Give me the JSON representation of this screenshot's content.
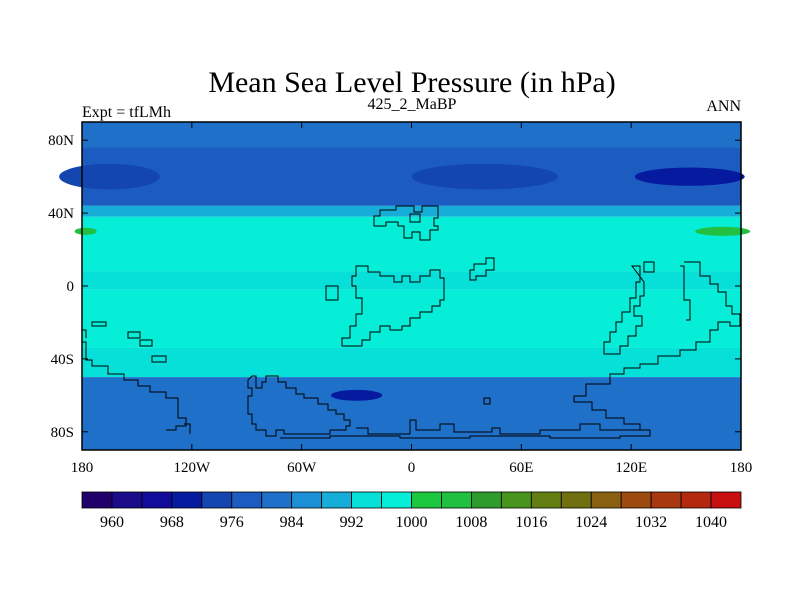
{
  "chart_data": {
    "type": "heatmap",
    "title": "Mean Sea Level Pressure (in hPa)",
    "left_label": "Expt = tfLMh",
    "center_label": "425_2_MaBP",
    "right_label": "ANN",
    "xlim": [
      -180,
      180
    ],
    "ylim": [
      -90,
      90
    ],
    "x_ticks": [
      {
        "value": -180,
        "label": "180"
      },
      {
        "value": -120,
        "label": "120W"
      },
      {
        "value": -60,
        "label": "60W"
      },
      {
        "value": 0,
        "label": "0"
      },
      {
        "value": 60,
        "label": "60E"
      },
      {
        "value": 120,
        "label": "120E"
      },
      {
        "value": 180,
        "label": "180"
      }
    ],
    "y_ticks": [
      {
        "value": 80,
        "label": "80N"
      },
      {
        "value": 40,
        "label": "40N"
      },
      {
        "value": 0,
        "label": "0"
      },
      {
        "value": -40,
        "label": "40S"
      },
      {
        "value": -80,
        "label": "80S"
      }
    ],
    "colorbar": {
      "levels": [
        956,
        960,
        964,
        968,
        972,
        976,
        980,
        984,
        988,
        992,
        996,
        1000,
        1004,
        1008,
        1012,
        1016,
        1020,
        1024,
        1028,
        1032,
        1036,
        1040,
        1044
      ],
      "colors": [
        "#20006a",
        "#1c0c8a",
        "#120c9a",
        "#061aa0",
        "#1446b0",
        "#1c5cc0",
        "#1e70c8",
        "#1c90d4",
        "#16aed8",
        "#06e0d8",
        "#06eed8",
        "#1cc840",
        "#22c040",
        "#2e9c2c",
        "#48941c",
        "#627e10",
        "#707010",
        "#886010",
        "#9c4a10",
        "#a83810",
        "#b42810",
        "#c81010"
      ],
      "labels": [
        "960",
        "968",
        "976",
        "984",
        "992",
        "1000",
        "1008",
        "1016",
        "1024",
        "1032",
        "1040"
      ]
    },
    "bands": [
      {
        "lat_north": 90,
        "lat_south": 76,
        "value": 982
      },
      {
        "lat_north": 76,
        "lat_south": 44,
        "value": 978
      },
      {
        "lat_north": 44,
        "lat_south": 38,
        "value": 990
      },
      {
        "lat_north": 38,
        "lat_south": 8,
        "value": 998
      },
      {
        "lat_north": 8,
        "lat_south": -2,
        "value": 994
      },
      {
        "lat_north": -2,
        "lat_south": -34,
        "value": 998
      },
      {
        "lat_north": -34,
        "lat_south": -50,
        "value": 994
      },
      {
        "lat_north": -50,
        "lat_south": -90,
        "value": 982
      }
    ],
    "anomalies": [
      {
        "lon": -165,
        "lat": 60,
        "width": 55,
        "height": 14,
        "value": 972
      },
      {
        "lon": 40,
        "lat": 60,
        "width": 80,
        "height": 14,
        "value": 972
      },
      {
        "lon": 152,
        "lat": 60,
        "width": 60,
        "height": 10,
        "value": 968
      },
      {
        "lon": -30,
        "lat": -60,
        "width": 28,
        "height": 6,
        "value": 968
      },
      {
        "lon": -178,
        "lat": 30,
        "width": 12,
        "height": 4,
        "value": 1004
      },
      {
        "lon": 170,
        "lat": 30,
        "width": 30,
        "height": 5,
        "value": 1004
      }
    ]
  }
}
